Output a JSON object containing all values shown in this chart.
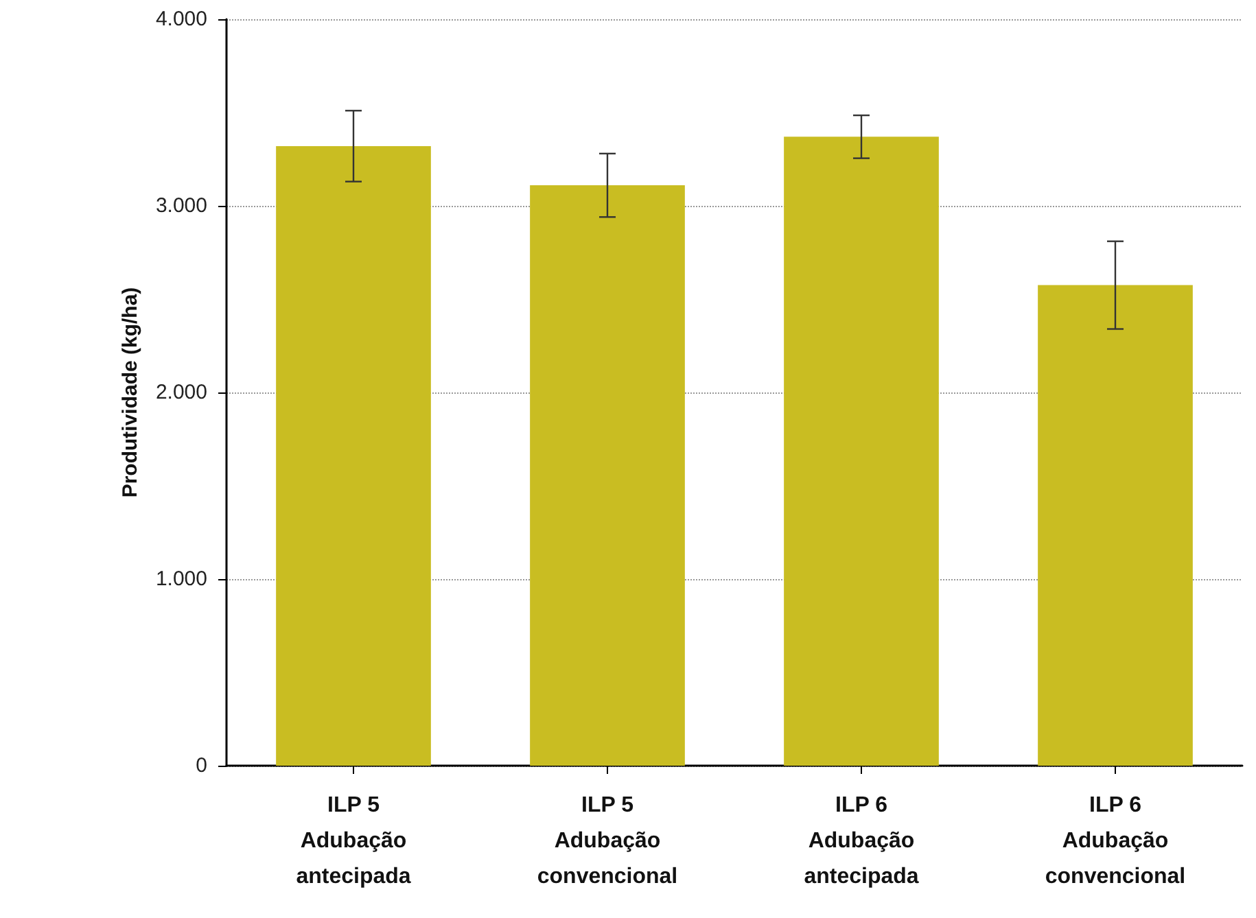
{
  "chart_data": {
    "type": "bar",
    "ylabel": "Produtividade (kg/ha)",
    "categories": [
      "ILP 5\nAdubação\nantecipada",
      "ILP 5\nAdubação\nconvencional",
      "ILP 6\nAdubação\nantecipada",
      "ILP 6\nAdubação\nconvencional"
    ],
    "values": [
      3320,
      3110,
      3370,
      2575
    ],
    "errors": [
      190,
      170,
      115,
      235
    ],
    "color": "#c9bd22",
    "ylim": [
      0,
      4000
    ],
    "yticks": [
      0,
      {
        "value": 1000,
        "label": "1.000"
      },
      {
        "value": 2000,
        "label": "2.000"
      },
      {
        "value": 3000,
        "label": "3.000"
      },
      {
        "value": 4000,
        "label": "4.000"
      }
    ],
    "grid": "y"
  }
}
